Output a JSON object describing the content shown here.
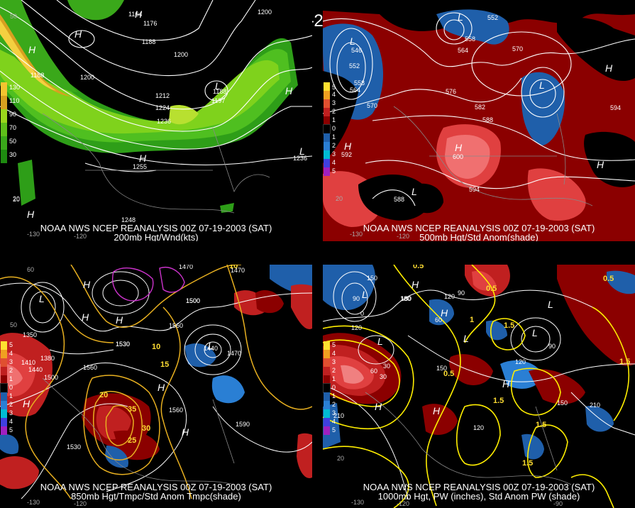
{
  "title": "00Z 07-19-2003 (SAT)",
  "panels": [
    {
      "id": "tl",
      "caption_line1": "NOAA NWS NCEP REANALYSIS 00Z 07-19-2003 (SAT)",
      "caption_line2": "200mb Hgt/Wnd(kts)",
      "legend": [
        {
          "label": "130",
          "color": "#f4c430"
        },
        {
          "label": "110",
          "color": "#d8a020"
        },
        {
          "label": "90",
          "color": "#9bd61c"
        },
        {
          "label": "70",
          "color": "#5fbf1a"
        },
        {
          "label": "50",
          "color": "#3aa81a"
        },
        {
          "label": "30",
          "color": "#1e8a10"
        }
      ],
      "labels": [
        "1200",
        "1164",
        "1176",
        "1188",
        "1200",
        "1188",
        "1200",
        "1212",
        "1224",
        "1236",
        "1188",
        "1197",
        "1255",
        "1248",
        "1236",
        "20"
      ],
      "highs_lows": [
        "H",
        "H",
        "H",
        "H",
        "L",
        "L",
        "H",
        "H"
      ],
      "ticks": [
        "-130",
        "-120",
        "50",
        "20"
      ]
    },
    {
      "id": "tr",
      "caption_line1": "NOAA NWS NCEP REANALYSIS 00Z 07-19-2003 (SAT)",
      "caption_line2": "500mb Hgt/Std Anom(shade)",
      "legend": [
        {
          "label": "5",
          "color": "#ffe030"
        },
        {
          "label": "4",
          "color": "#f0a020"
        },
        {
          "label": "3",
          "color": "#e05030"
        },
        {
          "label": "2",
          "color": "#c02020"
        },
        {
          "label": "1",
          "color": "#8b0000"
        },
        {
          "label": "0",
          "color": "#000000"
        },
        {
          "label": "1",
          "color": "#1f5faa"
        },
        {
          "label": "2",
          "color": "#2a7fd4"
        },
        {
          "label": "3",
          "color": "#00bcd4"
        },
        {
          "label": "4",
          "color": "#4040e0"
        },
        {
          "label": "5",
          "color": "#a020c0"
        }
      ],
      "labels": [
        "546",
        "552",
        "558",
        "564",
        "570",
        "576",
        "582",
        "588",
        "594",
        "592",
        "600",
        "588",
        "570",
        "558",
        "564",
        "552",
        "594"
      ],
      "highs_lows": [
        "L",
        "L",
        "L",
        "H",
        "H",
        "H",
        "L",
        "H"
      ],
      "ticks": [
        "-130",
        "-120",
        "20"
      ]
    },
    {
      "id": "bl",
      "caption_line1": "NOAA NWS NCEP REANALYSIS 00Z 07-19-2003 (SAT)",
      "caption_line2": "850mb Hgt/Tmpc/Std Anom Tmpc(shade)",
      "legend": [
        {
          "label": "5",
          "color": "#ffe030"
        },
        {
          "label": "4",
          "color": "#f0a020"
        },
        {
          "label": "3",
          "color": "#e05030"
        },
        {
          "label": "2",
          "color": "#c02020"
        },
        {
          "label": "1",
          "color": "#8b0000"
        },
        {
          "label": "0",
          "color": "#000000"
        },
        {
          "label": "1",
          "color": "#1f5faa"
        },
        {
          "label": "2",
          "color": "#2a7fd4"
        },
        {
          "label": "3",
          "color": "#00bcd4"
        },
        {
          "label": "4",
          "color": "#4040e0"
        },
        {
          "label": "5",
          "color": "#a020c0"
        }
      ],
      "labels": [
        "1470",
        "1350",
        "1500",
        "1530",
        "1560",
        "1410",
        "1440",
        "1530",
        "1560",
        "1590",
        "1530",
        "1560",
        "1470",
        "1500",
        "1380",
        "1440",
        "1470",
        "1500"
      ],
      "temps": [
        "10",
        "15",
        "20",
        "25",
        "30",
        "35",
        "10"
      ],
      "highs_lows": [
        "L",
        "H",
        "H",
        "H",
        "H",
        "L",
        "H",
        "H"
      ],
      "ticks": [
        "-130",
        "-120",
        "60",
        "50"
      ]
    },
    {
      "id": "br",
      "caption_line1": "NOAA NWS NCEP REANALYSIS 00Z 07-19-2003 (SAT)",
      "caption_line2": "1000mb Hgt, PW (inches), Std Anom PW (shade)",
      "legend": [
        {
          "label": "5",
          "color": "#ffe030"
        },
        {
          "label": "4",
          "color": "#f0a020"
        },
        {
          "label": "3",
          "color": "#e05030"
        },
        {
          "label": "2",
          "color": "#c02020"
        },
        {
          "label": "1",
          "color": "#8b0000"
        },
        {
          "label": "0",
          "color": "#000000"
        },
        {
          "label": "1",
          "color": "#1f5faa"
        },
        {
          "label": "2",
          "color": "#2a7fd4"
        },
        {
          "label": "3",
          "color": "#00bcd4"
        },
        {
          "label": "4",
          "color": "#4040e0"
        },
        {
          "label": "5",
          "color": "#a020c0"
        }
      ],
      "labels": [
        "180",
        "150",
        "120",
        "90",
        "60",
        "30",
        "0",
        "210",
        "150",
        "120",
        "90",
        "60",
        "30",
        "180",
        "120",
        "210",
        "150",
        "90",
        "120"
      ],
      "pw": [
        "0.5",
        "0.5",
        "1",
        "1.5",
        "1.5",
        "1.5",
        "0.5",
        "1.5",
        "1.5",
        "0.5"
      ],
      "highs_lows": [
        "L",
        "H",
        "H",
        "L",
        "L",
        "H",
        "H",
        "H",
        "L",
        "L"
      ],
      "ticks": [
        "-130",
        "-120",
        "20",
        "-90"
      ]
    }
  ]
}
